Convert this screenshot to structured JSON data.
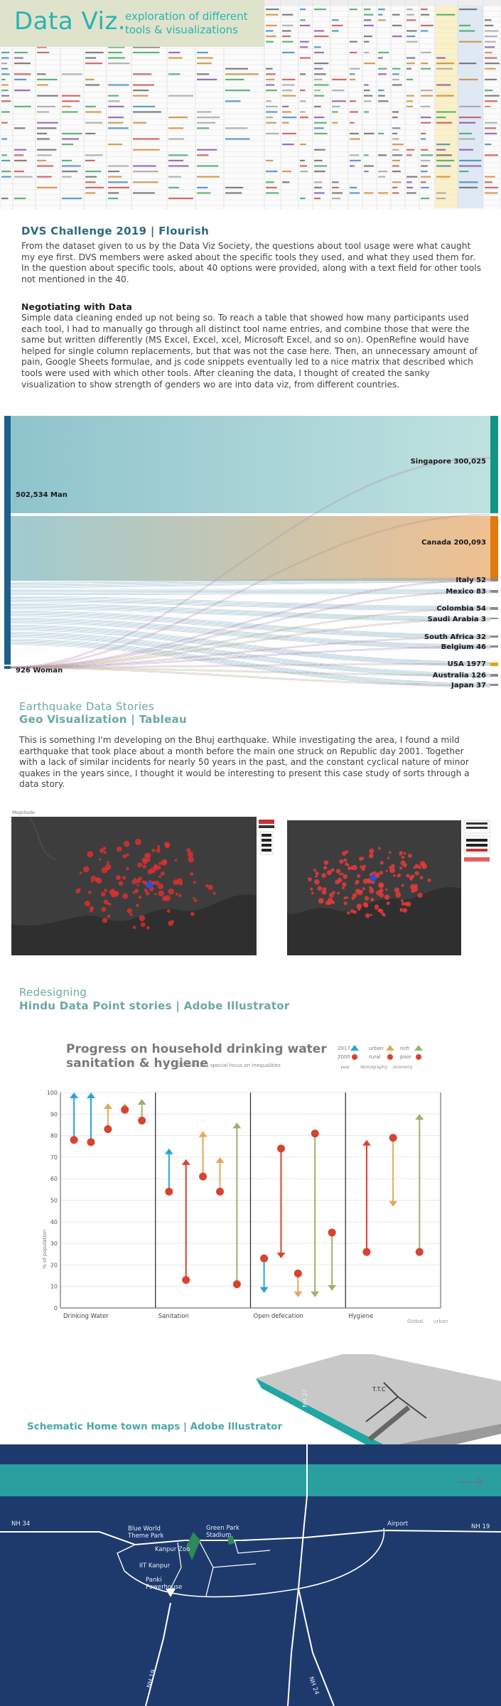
{
  "header": {
    "title": "Data Viz.",
    "subtitle": "exploration of different tools & visualizations"
  },
  "dvs": {
    "heading": "DVS Challenge 2019 | Flourish",
    "intro": "From the dataset given to us by the Data Viz Society, the questions about tool usage were what caught my eye first. DVS members were asked about the specific tools they used, and what they used them for. In the question about specific tools, about 40 options were provided, along with a text field for other tools not mentioned in the 40.",
    "subheading": "Negotiating with Data",
    "body": "Simple data cleaning ended up not being so. To reach a table that showed how many participants used each tool, I had to manually go through all distinct tool name entries, and combine those that were the same but written differently (MS Excel, Excel, xcel, Microsoft Excel, and so on). OpenRefine would have helped for single column replacements, but that was not the case here. Then, an unnecessary amount of pain, Google Sheets formulae, and js code snippets eventually led to a nice matrix that described which tools were used with which other tools. After cleaning the data, I thought of created the sanky visualization to show strength of genders wo are into data viz, from different countries."
  },
  "sankey": {
    "left_nodes": [
      {
        "label": "502,534 Man",
        "color": "#1f5f8b"
      },
      {
        "label": "926 Woman",
        "color": "#1f5f8b"
      }
    ],
    "right_nodes": [
      {
        "label": "Singapore 300,025",
        "color": "#13948a"
      },
      {
        "label": "Canada 200,093",
        "color": "#e3780f"
      },
      {
        "label": "Italy 52",
        "color": "#7a7a7a"
      },
      {
        "label": "Mexico 83",
        "color": "#7a7a7a"
      },
      {
        "label": "Colombia 54",
        "color": "#7a7a7a"
      },
      {
        "label": "Saudi Arabia 3",
        "color": "#7a7a7a"
      },
      {
        "label": "South Africa 32",
        "color": "#7a7a7a"
      },
      {
        "label": "Belgium 46",
        "color": "#7a7a7a"
      },
      {
        "label": "USA 1977",
        "color": "#e8a020"
      },
      {
        "label": "Australia 126",
        "color": "#7a7a7a"
      },
      {
        "label": "Japan 37",
        "color": "#7a7a7a"
      }
    ],
    "colors": {
      "main_flow": "#a9d3d7",
      "canada_flow": "#e9c9a0",
      "woman_flows": "#b6a0c8"
    }
  },
  "quake": {
    "heading_1": "Earthquake Data Stories",
    "heading_2": "Geo Visualization | Tableau",
    "body": "This is something I'm developing on the Bhuj earthquake. While investigating the area, I found a mild earthquake that took place about a month before the main one struck on Republic day 2001. Together with a lack of similar incidents for nearly 50 years in the past, and the constant cyclical nature of minor quakes in the years since, I thought it would be interesting to present this case study of sorts through a data story.",
    "map_caption": "Magnitude"
  },
  "hindu": {
    "heading_1": "Redesigning",
    "heading_2": "Hindu Data Point stories | Adobe Illustrator"
  },
  "water_chart": {
    "title_line1": "Progress on household drinking water",
    "title_line2": "sanitation & hygiene",
    "subtitle": "2000-2017 | special focus on inequalities",
    "legend_years": [
      "2017",
      "2000"
    ],
    "legend_groups": [
      "urban",
      "rural",
      "rich",
      "poor"
    ],
    "legend_facets": [
      "year",
      "demography",
      "economy"
    ],
    "ylabel": "% of population",
    "yticks": [
      "100",
      "90",
      "80",
      "70",
      "60",
      "50",
      "40",
      "30",
      "20",
      "10",
      "0"
    ],
    "categories": [
      "Drinking Water",
      "Sanitation",
      "Open defecation",
      "Hygiene"
    ],
    "footer_labels": [
      "Global",
      "urban"
    ],
    "colors": {
      "blue": "#2ba3d8",
      "red": "#d8432e",
      "orange": "#e3a85a",
      "green": "#9cb26a"
    }
  },
  "chart_data": {
    "type": "scatter",
    "title": "Progress on household drinking water sanitation & hygiene",
    "subtitle": "2000-2017 | special focus on inequalities",
    "ylabel": "% of population",
    "ylim": [
      0,
      100
    ],
    "categories": [
      "Drinking Water",
      "Sanitation",
      "Open defecation",
      "Hygiene"
    ],
    "series": [
      {
        "name": "urban",
        "color": "#2ba3d8",
        "arrows": [
          {
            "category": "Drinking Water",
            "from": 78,
            "to": 100
          },
          {
            "category": "Drinking Water",
            "from": 77,
            "to": 100
          },
          {
            "category": "Sanitation",
            "from": 54,
            "to": 74
          },
          {
            "category": "Open defecation",
            "from": 23,
            "to": 7
          }
        ]
      },
      {
        "name": "rural",
        "color": "#d8432e",
        "arrows": [
          {
            "category": "Sanitation",
            "from": 13,
            "to": 69
          },
          {
            "category": "Open defecation",
            "from": 74,
            "to": 23
          },
          {
            "category": "Hygiene",
            "from": 26,
            "to": 78
          }
        ]
      },
      {
        "name": "rich",
        "color": "#e3a85a",
        "arrows": [
          {
            "category": "Drinking Water",
            "from": 83,
            "to": 95
          },
          {
            "category": "Drinking Water",
            "from": 92,
            "to": 95
          },
          {
            "category": "Sanitation",
            "from": 61,
            "to": 82
          },
          {
            "category": "Sanitation",
            "from": 54,
            "to": 70
          },
          {
            "category": "Open defecation",
            "from": 16,
            "to": 5
          },
          {
            "category": "Hygiene",
            "from": 79,
            "to": 47
          }
        ]
      },
      {
        "name": "poor",
        "color": "#9cb26a",
        "arrows": [
          {
            "category": "Drinking Water",
            "from": 87,
            "to": 97
          },
          {
            "category": "Sanitation",
            "from": 11,
            "to": 86
          },
          {
            "category": "Open defecation",
            "from": 81,
            "to": 5
          },
          {
            "category": "Open defecation",
            "from": 35,
            "to": 8
          },
          {
            "category": "Hygiene",
            "from": 26,
            "to": 90
          }
        ]
      }
    ]
  },
  "maps": {
    "heading": "Schematic Home town maps | Adobe Illustrator",
    "labels": [
      "NH 27",
      "Blue World Theme Park",
      "Green Park Stadium",
      "Kanpur Zoo",
      "IIT Kanpur",
      "Panki Powerhouse",
      "NH 34",
      "NH 19",
      "Airport",
      "NH 19",
      "NH 19",
      "NH 24"
    ],
    "iso_label": "T.T.C",
    "colors": {
      "ocean": "#1e3a6d",
      "road": "#ffffff",
      "park": "#2e8a5a",
      "teal": "#1aa5a3"
    }
  }
}
